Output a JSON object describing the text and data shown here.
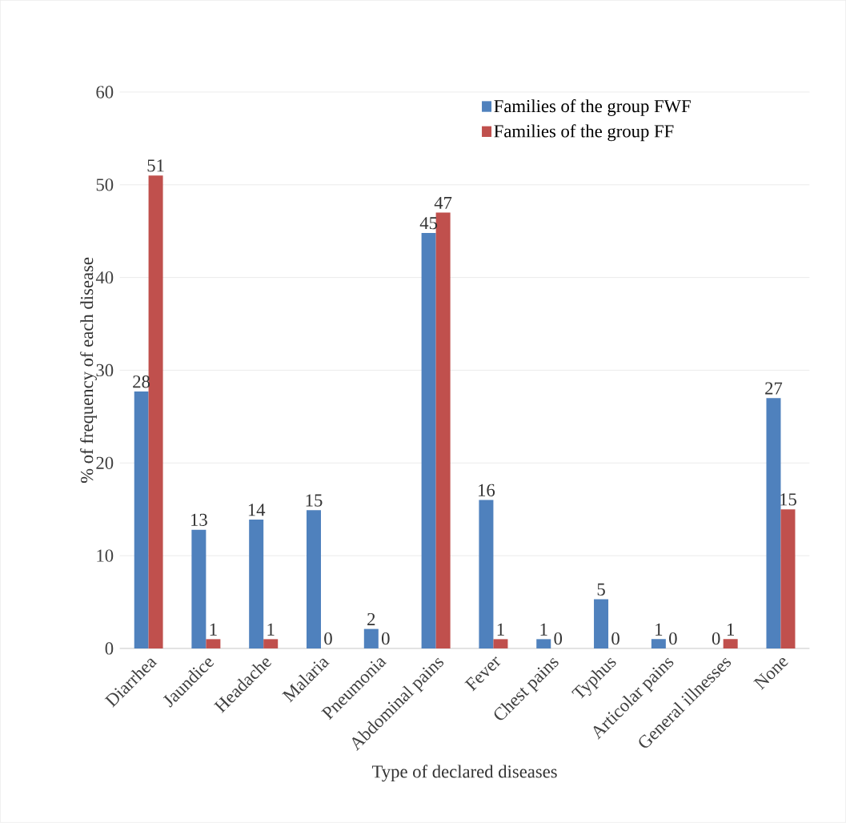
{
  "chart_data": {
    "type": "bar",
    "xlabel": "Type of declared diseases",
    "ylabel": "% of frequency of each disease",
    "categories": [
      "Diarrhea",
      "Jaundice",
      "Headache",
      "Malaria",
      "Pneumonia",
      "Abdominal pains",
      "Fever",
      "Chest pains",
      "Typhus",
      "Articolar pains",
      "General illnesses",
      "None"
    ],
    "series": [
      {
        "name": "Families of the group FWF",
        "color": "#4f81bd",
        "values": [
          27.7,
          12.8,
          13.9,
          14.9,
          2.1,
          44.8,
          16,
          1,
          5.3,
          1,
          0,
          27
        ],
        "value_labels": [
          "28",
          "13",
          "14",
          "15",
          "2",
          "45",
          "16",
          "1",
          "5",
          "1",
          "0",
          "27"
        ]
      },
      {
        "name": "Families of the group FF",
        "color": "#c0504d",
        "values": [
          51,
          1,
          1,
          0,
          0,
          47,
          1,
          0,
          0,
          0,
          1,
          15
        ],
        "value_labels": [
          "51",
          "1",
          "1",
          "0",
          "0",
          "47",
          "1",
          "0",
          "0",
          "0",
          "1",
          "15"
        ]
      }
    ],
    "ylim": [
      0,
      60
    ],
    "yticks": [
      0,
      10,
      20,
      30,
      40,
      50,
      60
    ],
    "grid": "y",
    "legend": "top right"
  }
}
